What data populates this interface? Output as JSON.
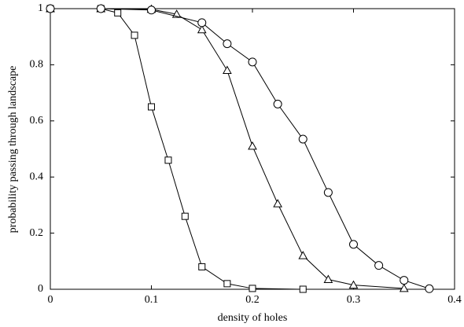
{
  "chart_data": {
    "type": "line",
    "xlabel": "density of holes",
    "ylabel": "probability passing through landscape",
    "xlim": [
      0,
      0.4
    ],
    "xticks": [
      0,
      0.1,
      0.2,
      0.3,
      0.4
    ],
    "ylim": [
      0,
      1
    ],
    "yticks": [
      0,
      0.2,
      0.4,
      0.6,
      0.8,
      1
    ],
    "series": [
      {
        "color": "#000000",
        "marker": "square",
        "x": [
          0,
          0.05,
          0.0667,
          0.0833,
          0.1,
          0.1167,
          0.1333,
          0.15,
          0.175,
          0.2,
          0.25
        ],
        "values": [
          1,
          1,
          0.985,
          0.905,
          0.65,
          0.46,
          0.26,
          0.08,
          0.02,
          0.003,
          0
        ]
      },
      {
        "color": "#000000",
        "marker": "triangle",
        "x": [
          0,
          0.05,
          0.1,
          0.125,
          0.15,
          0.175,
          0.2,
          0.225,
          0.25,
          0.275,
          0.3,
          0.35
        ],
        "values": [
          1,
          1,
          0.998,
          0.98,
          0.925,
          0.78,
          0.51,
          0.305,
          0.12,
          0.035,
          0.015,
          0.003
        ]
      },
      {
        "color": "#000000",
        "marker": "circle",
        "x": [
          0,
          0.05,
          0.1,
          0.15,
          0.175,
          0.2,
          0.225,
          0.25,
          0.275,
          0.3,
          0.325,
          0.35,
          0.375
        ],
        "values": [
          1,
          1,
          0.995,
          0.95,
          0.875,
          0.81,
          0.66,
          0.535,
          0.345,
          0.16,
          0.085,
          0.032,
          0.002
        ]
      }
    ]
  }
}
